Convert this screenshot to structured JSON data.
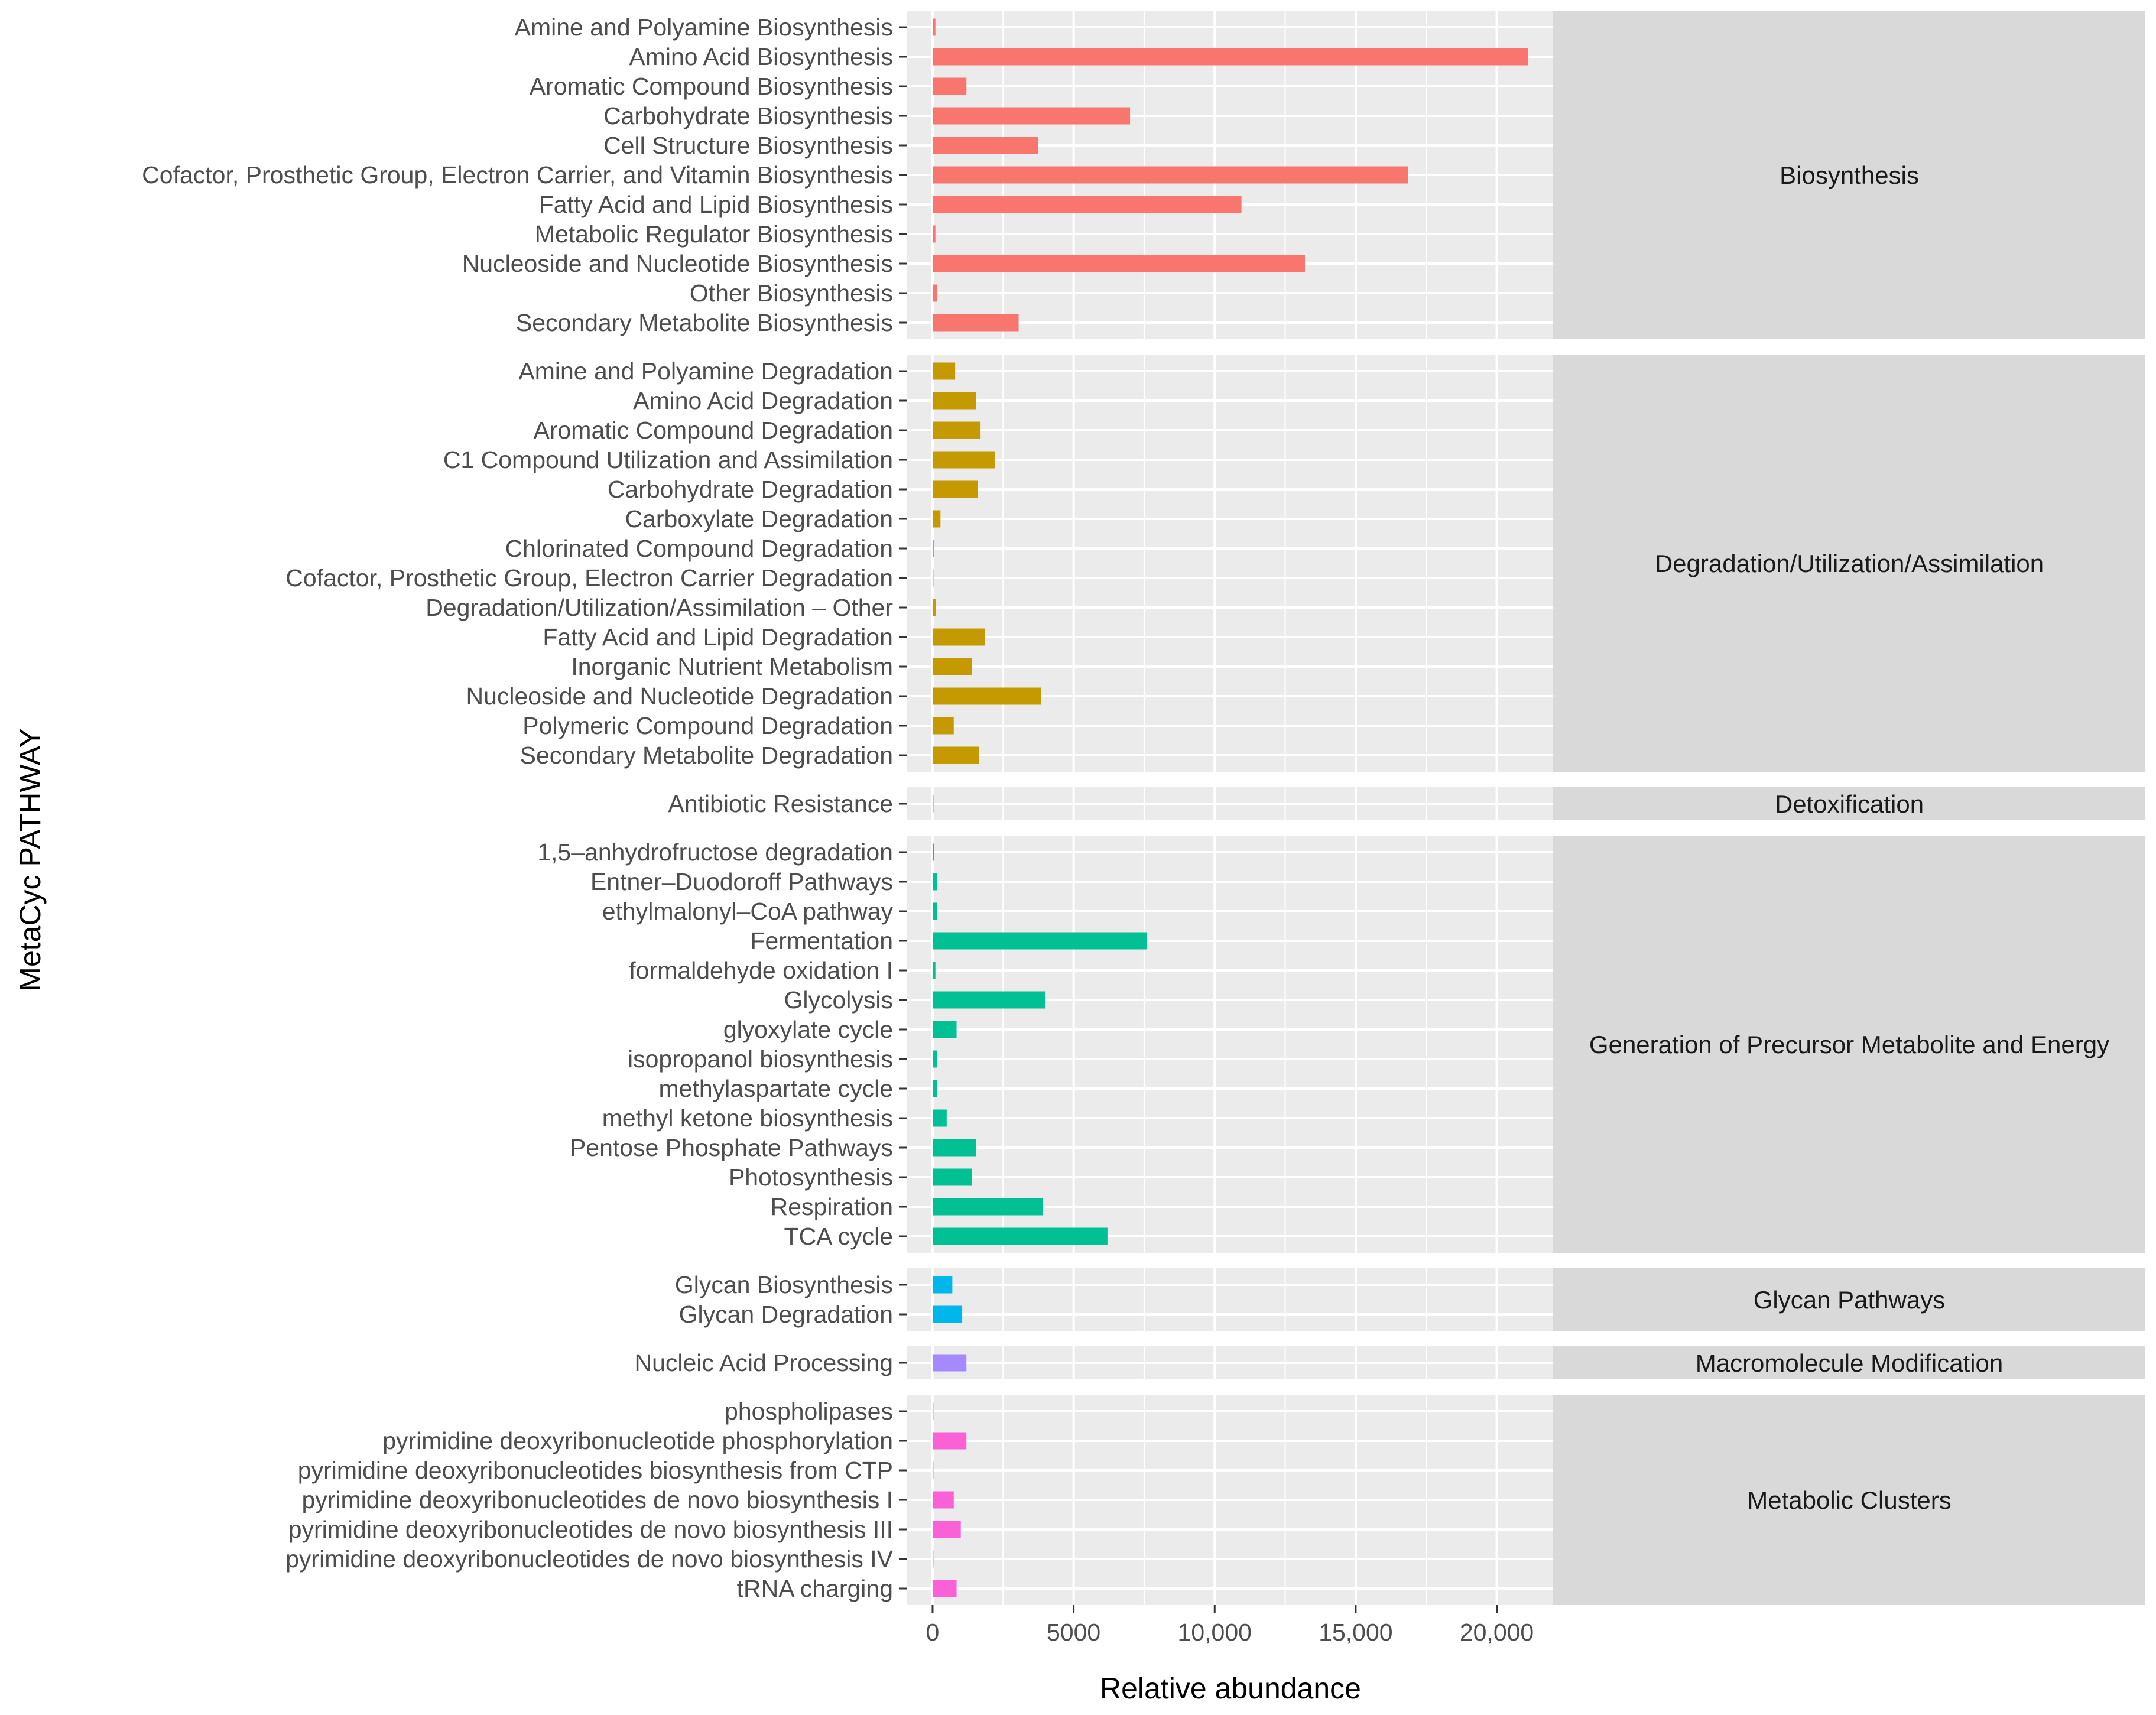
{
  "chart_data": {
    "type": "bar",
    "orientation": "horizontal",
    "title": "",
    "xlabel": "Relative abundance",
    "ylabel": "MetaCyc PATHWAY",
    "xlim": [
      -900,
      22000
    ],
    "x_ticks": [
      0,
      5000,
      10000,
      15000,
      20000
    ],
    "x_tick_labels": [
      "0",
      "5000",
      "10,000",
      "15,000",
      "20,000"
    ],
    "grid": true,
    "legend": "none",
    "facets": [
      {
        "name": "Biosynthesis",
        "color": "#F8766D",
        "categories": [
          "Amine and Polyamine Biosynthesis",
          "Amino Acid Biosynthesis",
          "Aromatic Compound Biosynthesis",
          "Carbohydrate Biosynthesis",
          "Cell Structure Biosynthesis",
          "Cofactor, Prosthetic Group, Electron Carrier, and Vitamin Biosynthesis",
          "Fatty Acid and Lipid Biosynthesis",
          "Metabolic Regulator Biosynthesis",
          "Nucleoside and Nucleotide Biosynthesis",
          "Other Biosynthesis",
          "Secondary Metabolite Biosynthesis"
        ],
        "values": [
          100,
          21100,
          1200,
          7000,
          3750,
          16850,
          10950,
          100,
          13200,
          150,
          3050
        ]
      },
      {
        "name": "Degradation/Utilization/Assimilation",
        "color": "#C49A00",
        "categories": [
          "Amine and Polyamine Degradation",
          "Amino Acid Degradation",
          "Aromatic Compound Degradation",
          "C1 Compound Utilization and Assimilation",
          "Carbohydrate Degradation",
          "Carboxylate Degradation",
          "Chlorinated Compound Degradation",
          "Cofactor, Prosthetic Group, Electron Carrier Degradation",
          "Degradation/Utilization/Assimilation – Other",
          "Fatty Acid and Lipid Degradation",
          "Inorganic Nutrient Metabolism",
          "Nucleoside and Nucleotide Degradation",
          "Polymeric Compound Degradation",
          "Secondary Metabolite Degradation"
        ],
        "values": [
          800,
          1550,
          1700,
          2200,
          1600,
          280,
          40,
          20,
          120,
          1850,
          1400,
          3850,
          750,
          1650
        ]
      },
      {
        "name": "Detoxification",
        "color": "#53B400",
        "categories": [
          "Antibiotic Resistance"
        ],
        "values": [
          20
        ]
      },
      {
        "name": "Generation of Precursor Metabolite and Energy",
        "color": "#00C094",
        "categories": [
          "1,5–anhydrofructose degradation",
          "Entner–Duodoroff Pathways",
          "ethylmalonyl–CoA pathway",
          "Fermentation",
          "formaldehyde oxidation I",
          "Glycolysis",
          "glyoxylate cycle",
          "isopropanol biosynthesis",
          "methylaspartate cycle",
          "methyl ketone biosynthesis",
          "Pentose Phosphate Pathways",
          "Photosynthesis",
          "Respiration",
          "TCA cycle"
        ],
        "values": [
          50,
          150,
          150,
          7600,
          100,
          4000,
          850,
          150,
          150,
          500,
          1550,
          1400,
          3900,
          6200
        ]
      },
      {
        "name": "Glycan Pathways",
        "color": "#00B6EB",
        "categories": [
          "Glycan Biosynthesis",
          "Glycan Degradation"
        ],
        "values": [
          700,
          1050
        ]
      },
      {
        "name": "Macromolecule Modification",
        "color": "#A58AFF",
        "categories": [
          "Nucleic Acid Processing"
        ],
        "values": [
          1200
        ]
      },
      {
        "name": "Metabolic Clusters",
        "color": "#FB61D7",
        "categories": [
          "phospholipases",
          "pyrimidine deoxyribonucleotide phosphorylation",
          "pyrimidine deoxyribonucleotides biosynthesis from CTP",
          "pyrimidine deoxyribonucleotides de novo biosynthesis I",
          "pyrimidine deoxyribonucleotides de novo biosynthesis III",
          "pyrimidine deoxyribonucleotides de novo biosynthesis IV",
          "tRNA charging"
        ],
        "values": [
          30,
          1200,
          30,
          750,
          1000,
          30,
          850
        ]
      }
    ]
  }
}
